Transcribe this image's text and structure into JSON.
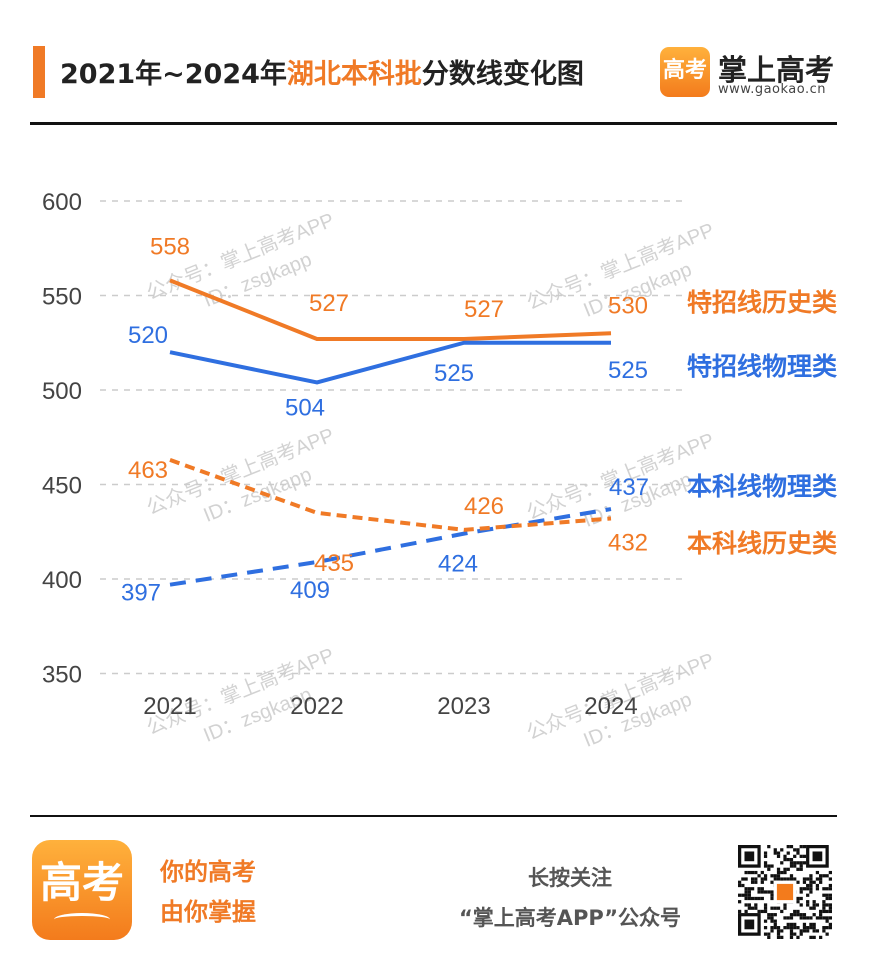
{
  "header": {
    "title_pre": "2021年~2024年",
    "title_hl": "湖北本科批",
    "title_post": "分数线变化图",
    "brand_logo": "高考",
    "brand_name": "掌上高考",
    "brand_url": "www.gaokao.cn"
  },
  "chart_data": {
    "type": "line",
    "categories": [
      "2021",
      "2022",
      "2023",
      "2024"
    ],
    "ylim": [
      350,
      600
    ],
    "yticks": [
      "600",
      "550",
      "500",
      "450",
      "400",
      "350"
    ],
    "series": [
      {
        "name": "特招线历史类",
        "values": [
          558,
          527,
          527,
          530
        ],
        "color": "#f07a26",
        "style": "solid"
      },
      {
        "name": "特招线物理类",
        "values": [
          520,
          504,
          525,
          525
        ],
        "color": "#2f6fe0",
        "style": "solid"
      },
      {
        "name": "本科线物理类",
        "values": [
          397,
          409,
          424,
          437
        ],
        "color": "#2f6fe0",
        "style": "dashed"
      },
      {
        "name": "本科线历史类",
        "values": [
          463,
          435,
          426,
          432
        ],
        "color": "#f07a26",
        "style": "dashed"
      }
    ]
  },
  "watermark": {
    "line1": "公众号：掌上高考APP",
    "line2": "ID：zsgkapp"
  },
  "footer": {
    "logo": "高考",
    "slogan_line1": "你的高考",
    "slogan_line2": "由你掌握",
    "follow_line1": "长按关注",
    "follow_line2": "“掌上高考APP”公众号"
  }
}
